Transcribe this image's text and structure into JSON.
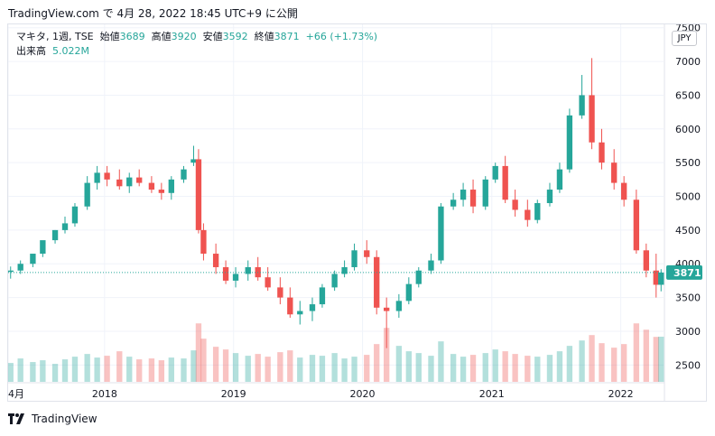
{
  "header": {
    "caption": "TradingView.com で 4月 28, 2022 18:45 UTC+9 に公開"
  },
  "legend": {
    "symbol": "マキタ, 1週, TSE",
    "open_label": "始値",
    "open": "3689",
    "high_label": "高値",
    "high": "3920",
    "low_label": "安値",
    "low": "3592",
    "close_label": "終値",
    "close": "3871",
    "change": "+66 (+1.73%)",
    "volume_label": "出来高",
    "volume": "5.022M"
  },
  "currency": "JPY",
  "footer": {
    "brand": "TradingView",
    "logo": "tradingview-logo-icon"
  },
  "colors": {
    "up": "#26a69a",
    "down": "#ef5350",
    "grid": "#f0f3fa",
    "last_price_bg": "#26a69a"
  },
  "chart_data": {
    "type": "candlestick",
    "y_ticks": [
      "7500",
      "7000",
      "6500",
      "6000",
      "5500",
      "5000",
      "4500",
      "4000",
      "3500",
      "3000",
      "2500"
    ],
    "ylim": [
      2250,
      7550
    ],
    "x_ticks": [
      "4月",
      "2018",
      "2019",
      "2020",
      "2021",
      "2022"
    ],
    "x_tick_dates": [
      "2017-04-03",
      "2018-01-01",
      "2019-01-01",
      "2020-01-01",
      "2021-01-01",
      "2022-01-01"
    ],
    "xlim": [
      "2017-04-03",
      "2022-05-02"
    ],
    "last_price": "3871",
    "grid": true,
    "series": [
      {
        "dates": [
          "2017-04-10",
          "2017-05-08",
          "2017-06-12",
          "2017-07-10",
          "2017-08-14",
          "2017-09-11",
          "2017-10-09",
          "2017-11-13",
          "2017-12-11",
          "2018-01-08",
          "2018-02-12",
          "2018-03-12",
          "2018-04-09",
          "2018-05-14",
          "2018-06-11",
          "2018-07-09",
          "2018-08-13",
          "2018-09-10",
          "2018-09-24",
          "2018-10-08",
          "2018-11-12",
          "2018-12-10",
          "2019-01-07",
          "2019-02-11",
          "2019-03-11",
          "2019-04-08",
          "2019-05-13",
          "2019-06-10",
          "2019-07-08",
          "2019-08-12",
          "2019-09-09",
          "2019-10-14",
          "2019-11-11",
          "2019-12-09",
          "2020-01-13",
          "2020-02-10",
          "2020-03-09",
          "2020-04-13",
          "2020-05-11",
          "2020-06-08",
          "2020-07-13",
          "2020-08-10",
          "2020-09-14",
          "2020-10-12",
          "2020-11-09",
          "2020-12-14",
          "2021-01-11",
          "2021-02-08",
          "2021-03-08",
          "2021-04-12",
          "2021-05-10",
          "2021-06-14",
          "2021-07-12",
          "2021-08-09",
          "2021-09-13",
          "2021-10-11",
          "2021-11-08",
          "2021-12-13",
          "2022-01-10",
          "2022-02-14",
          "2022-03-14",
          "2022-04-11",
          "2022-04-25"
        ],
        "open": [
          3880,
          3900,
          4000,
          4150,
          4350,
          4500,
          4600,
          4850,
          5200,
          5350,
          5250,
          5150,
          5280,
          5200,
          5100,
          5050,
          5250,
          5500,
          5550,
          4500,
          4150,
          3950,
          3750,
          3850,
          3950,
          3800,
          3650,
          3500,
          3250,
          3300,
          3400,
          3650,
          3850,
          3950,
          4200,
          4100,
          3350,
          3300,
          3450,
          3700,
          3900,
          4050,
          4850,
          4950,
          5100,
          4850,
          5250,
          5450,
          4950,
          4800,
          4650,
          4900,
          5100,
          5400,
          6200,
          6500,
          5800,
          5500,
          5200,
          4950,
          4200,
          3900,
          3689
        ],
        "high": [
          3960,
          4050,
          4120,
          4300,
          4500,
          4700,
          4900,
          5300,
          5450,
          5450,
          5400,
          5350,
          5400,
          5300,
          5200,
          5300,
          5450,
          5750,
          5700,
          4600,
          4300,
          4050,
          3950,
          4050,
          4100,
          3950,
          3800,
          3650,
          3450,
          3500,
          3700,
          3900,
          4050,
          4300,
          4350,
          4200,
          3500,
          3550,
          3800,
          3950,
          4150,
          4900,
          5050,
          5200,
          5250,
          5300,
          5500,
          5600,
          5100,
          4950,
          4950,
          5200,
          5500,
          6300,
          6800,
          7050,
          6000,
          5700,
          5300,
          5100,
          4300,
          4150,
          3920
        ],
        "low": [
          3780,
          3850,
          3950,
          4100,
          4300,
          4450,
          4550,
          4800,
          5100,
          5150,
          5100,
          5050,
          5150,
          5050,
          4950,
          4950,
          5200,
          5450,
          4450,
          4050,
          3850,
          3700,
          3650,
          3750,
          3750,
          3600,
          3400,
          3200,
          3100,
          3150,
          3350,
          3600,
          3800,
          3900,
          4000,
          3250,
          2750,
          3200,
          3400,
          3650,
          3850,
          4000,
          4800,
          4850,
          4750,
          4800,
          5200,
          4900,
          4700,
          4550,
          4600,
          4850,
          5050,
          5350,
          6150,
          5700,
          5400,
          5100,
          4850,
          4150,
          3800,
          3500,
          3592
        ],
        "close": [
          3900,
          4000,
          4150,
          4350,
          4500,
          4600,
          4850,
          5200,
          5350,
          5250,
          5150,
          5280,
          5200,
          5100,
          5050,
          5250,
          5400,
          5550,
          4500,
          4150,
          3950,
          3750,
          3850,
          3950,
          3800,
          3650,
          3500,
          3250,
          3300,
          3400,
          3650,
          3850,
          3950,
          4200,
          4100,
          3350,
          3300,
          3450,
          3700,
          3900,
          4050,
          4850,
          4950,
          5100,
          4850,
          5250,
          5450,
          4950,
          4800,
          4650,
          4900,
          5100,
          5400,
          6200,
          6500,
          5800,
          5500,
          5200,
          4950,
          4200,
          3900,
          3689,
          3871
        ],
        "volume": [
          2.1,
          2.6,
          2.2,
          2.4,
          2.0,
          2.5,
          2.8,
          3.1,
          2.7,
          2.9,
          3.4,
          2.8,
          2.5,
          2.6,
          2.4,
          2.7,
          2.6,
          3.5,
          6.5,
          4.8,
          3.9,
          3.6,
          3.2,
          2.9,
          3.1,
          2.8,
          3.3,
          3.5,
          2.7,
          3.0,
          2.9,
          3.2,
          2.6,
          2.8,
          3.0,
          4.2,
          6.0,
          4.0,
          3.4,
          3.2,
          2.9,
          4.5,
          3.1,
          2.8,
          3.0,
          3.2,
          3.6,
          3.4,
          3.1,
          2.9,
          2.8,
          3.0,
          3.4,
          4.0,
          4.6,
          5.2,
          4.3,
          3.8,
          4.2,
          6.5,
          5.8,
          5.0,
          5.022
        ]
      }
    ]
  }
}
